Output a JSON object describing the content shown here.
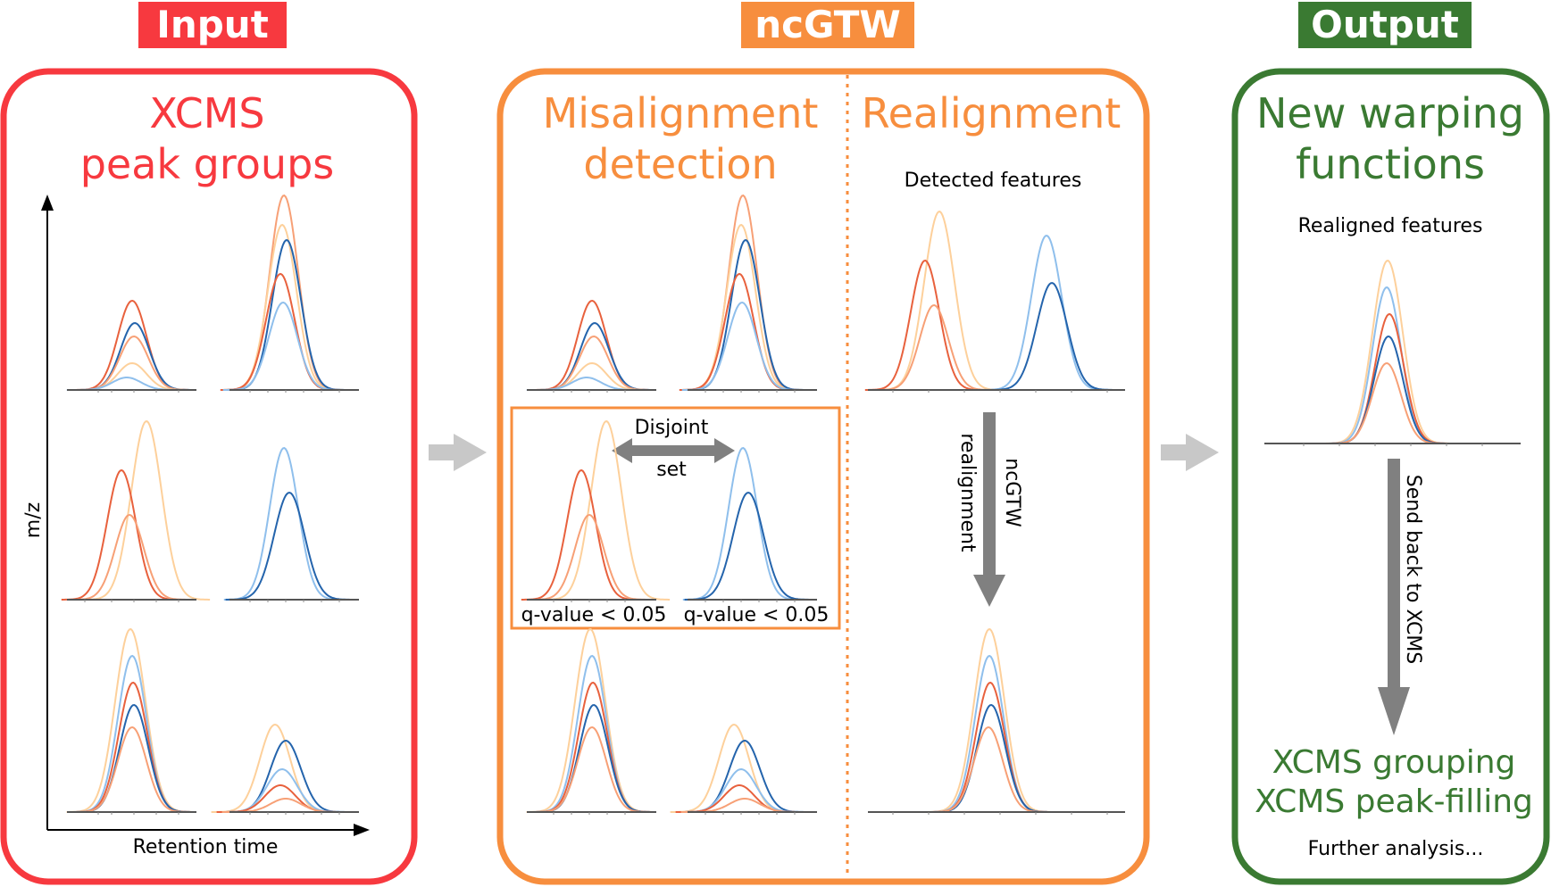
{
  "colors": {
    "input": "#f7393f",
    "ncgtw": "#f78e3e",
    "output": "#3a7a32",
    "flow_arrow": "#c8c8c8",
    "gray_arrow": "#808080",
    "axis": "#555555",
    "peak_palette": [
      "#fdd09b",
      "#f7a076",
      "#e8613d",
      "#2464ac",
      "#8fbfec"
    ]
  },
  "input": {
    "badge": "Input",
    "title_line1": "XCMS",
    "title_line2": "peak groups",
    "y_axis_label": "m/z",
    "x_axis_label": "Retention time"
  },
  "ncgtw": {
    "badge": "ncGTW",
    "left_title_line1": "Misalignment",
    "left_title_line2": "detection",
    "disjoint_line1": "Disjoint",
    "disjoint_line2": "set",
    "qvalue_left": "q-value < 0.05",
    "qvalue_right": "q-value < 0.05",
    "right_title": "Realignment",
    "detected_features": "Detected features",
    "arrow_line1": "ncGTW",
    "arrow_line2": "realignment"
  },
  "output": {
    "badge": "Output",
    "title_line1": "New warping",
    "title_line2": "functions",
    "realigned_features": "Realigned features",
    "send_back": "Send back to XCMS",
    "grouping": "XCMS grouping",
    "peak_filling": "XCMS peak-filling",
    "further": "Further analysis..."
  }
}
